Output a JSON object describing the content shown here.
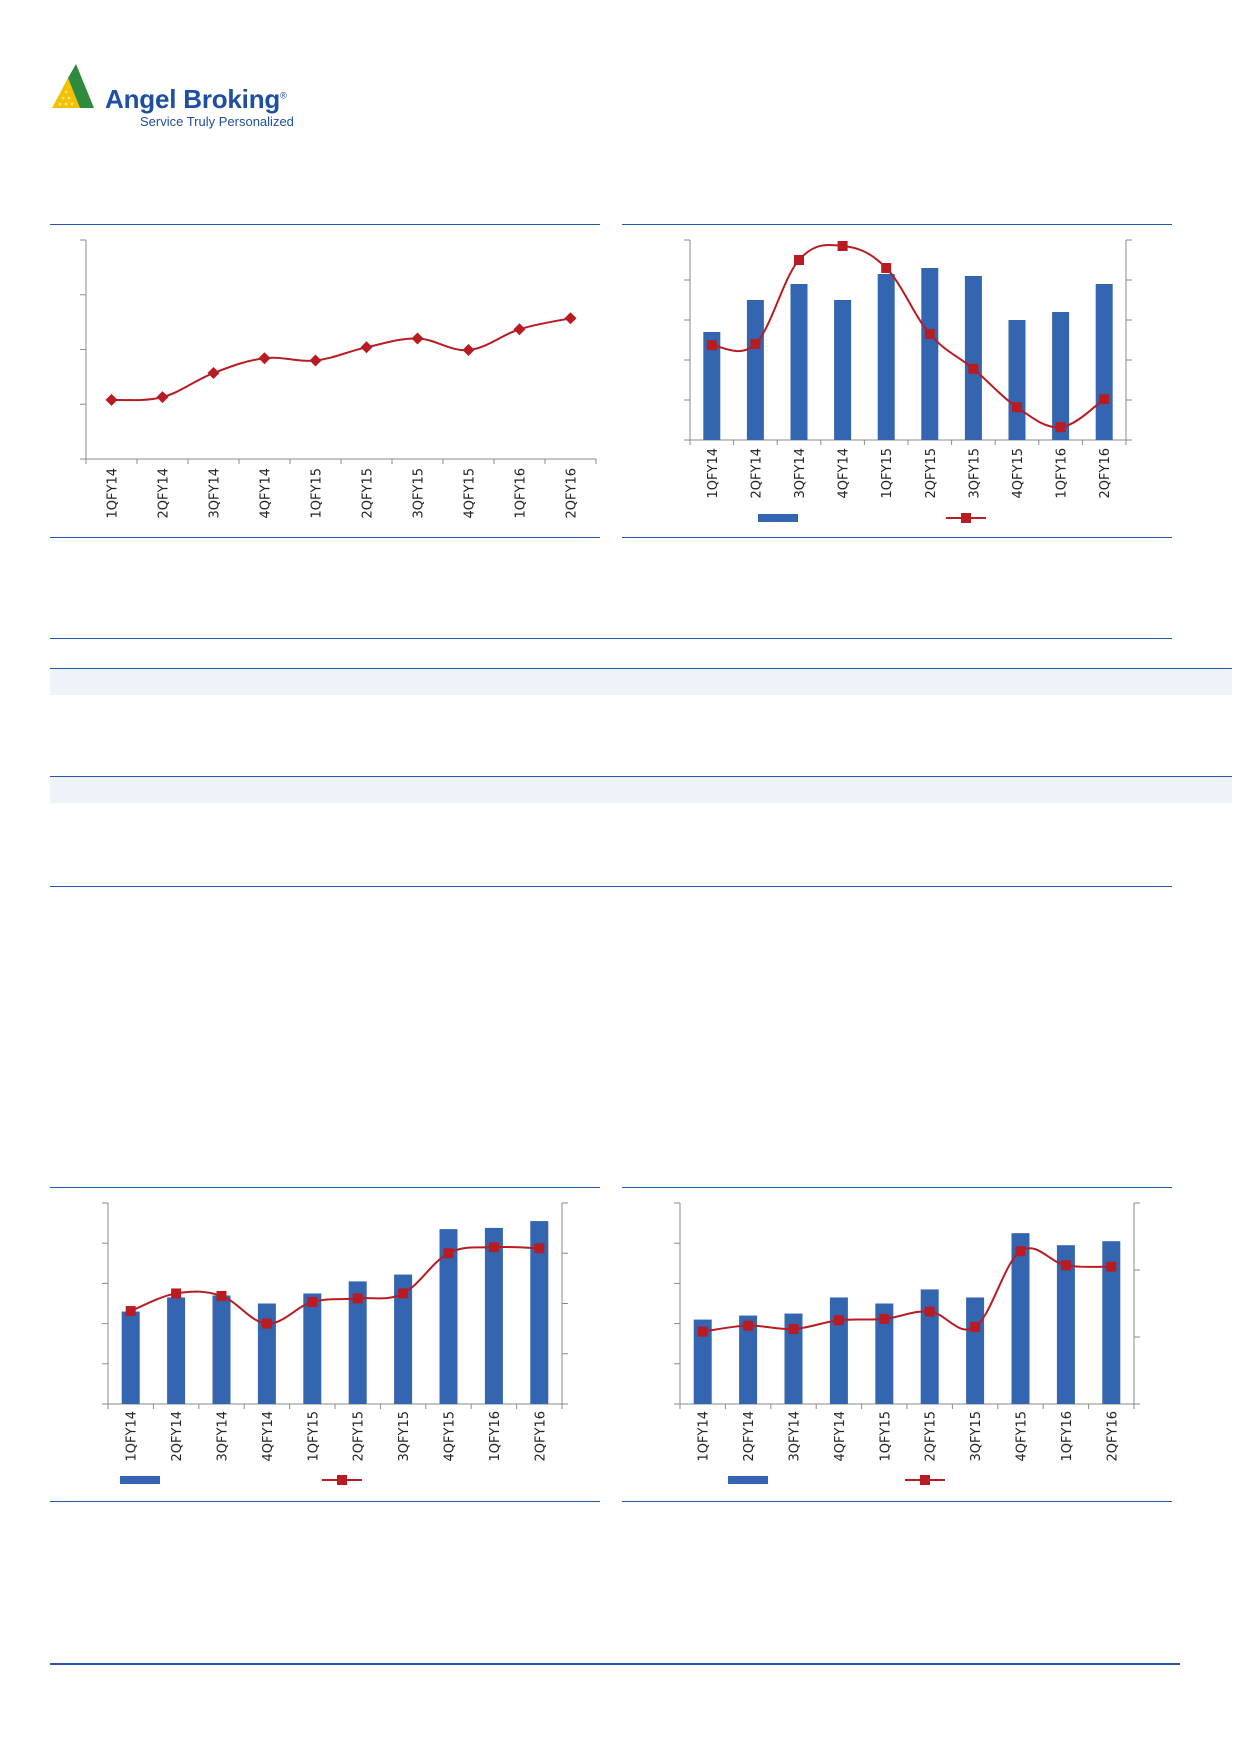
{
  "brand": {
    "name": "Angel Broking",
    "registered_mark": "®",
    "tagline": "Service Truly Personalized",
    "colors": {
      "blue": "#1e4fa0",
      "green": "#2e8b3e",
      "yellow": "#f2c200"
    }
  },
  "colors": {
    "bar": "#3465b0",
    "line": "#b81c22",
    "rule": "#2457a6",
    "band": "#eef2f9"
  },
  "chart_data": [
    {
      "type": "line",
      "categories": [
        "1QFY14",
        "2QFY14",
        "3QFY14",
        "4QFY14",
        "1QFY15",
        "2QFY15",
        "3QFY15",
        "4QFY15",
        "1QFY16",
        "2QFY16"
      ],
      "series": [
        {
          "marker": "diamond",
          "values": [
            1.08,
            1.13,
            1.57,
            1.84,
            1.8,
            2.04,
            2.2,
            1.99,
            2.37,
            2.57
          ]
        }
      ],
      "ylim": [
        0,
        4
      ],
      "grid": false,
      "legend": "none"
    },
    {
      "type": "bar+line",
      "categories": [
        "1QFY14",
        "2QFY14",
        "3QFY14",
        "4QFY14",
        "1QFY15",
        "2QFY15",
        "3QFY15",
        "4QFY15",
        "1QFY16",
        "2QFY16"
      ],
      "bar_values": [
        2.7,
        3.5,
        3.9,
        3.5,
        4.15,
        4.3,
        4.1,
        3.0,
        3.2,
        3.9
      ],
      "bar_ylim": [
        0,
        5
      ],
      "line_values": [
        2.37,
        2.4,
        4.5,
        4.85,
        4.3,
        2.65,
        1.78,
        0.82,
        0.32,
        1.02
      ],
      "line_ylim": [
        0,
        5
      ],
      "legend": "bottom"
    },
    {
      "type": "bar+line",
      "categories": [
        "1QFY14",
        "2QFY14",
        "3QFY14",
        "4QFY14",
        "1QFY15",
        "2QFY15",
        "3QFY15",
        "4QFY15",
        "1QFY16",
        "2QFY16"
      ],
      "bar_values": [
        2.3,
        2.65,
        2.7,
        2.5,
        2.75,
        3.05,
        3.22,
        4.35,
        4.38,
        4.55
      ],
      "bar_ylim": [
        0,
        5
      ],
      "line_values": [
        1.85,
        2.2,
        2.15,
        1.6,
        2.03,
        2.1,
        2.2,
        3.0,
        3.12,
        3.1
      ],
      "line_ylim": [
        0,
        4
      ],
      "legend": "bottom"
    },
    {
      "type": "bar+line",
      "categories": [
        "1QFY14",
        "2QFY14",
        "3QFY14",
        "4QFY14",
        "1QFY15",
        "2QFY15",
        "3QFY15",
        "4QFY15",
        "1QFY16",
        "2QFY16"
      ],
      "bar_values": [
        2.1,
        2.2,
        2.25,
        2.65,
        2.5,
        2.85,
        2.65,
        4.25,
        3.95,
        4.05
      ],
      "bar_ylim": [
        0,
        5
      ],
      "line_values": [
        1.08,
        1.17,
        1.12,
        1.25,
        1.27,
        1.38,
        1.15,
        2.28,
        2.07,
        2.05
      ],
      "line_ylim": [
        0,
        3
      ],
      "legend": "bottom"
    }
  ]
}
